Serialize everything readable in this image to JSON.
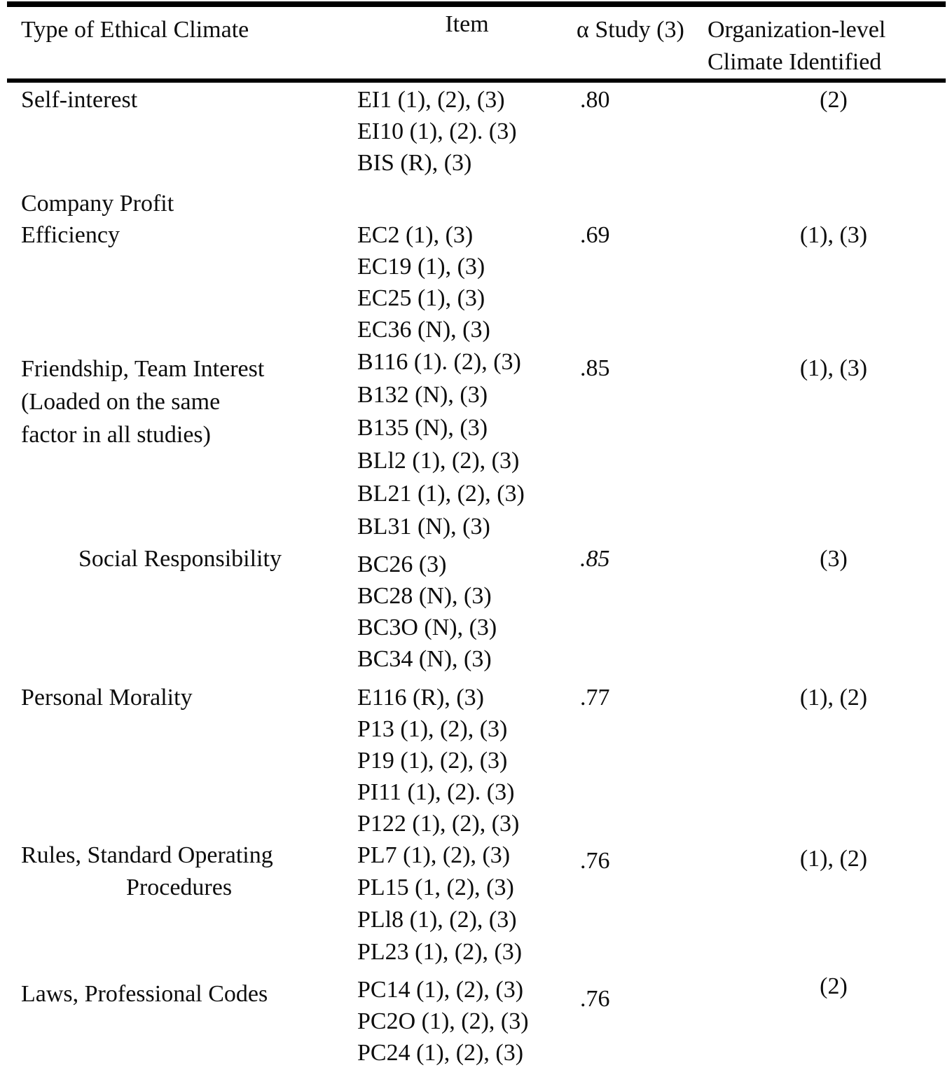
{
  "table": {
    "headers": {
      "col1": "Type of Ethical Climate",
      "col2": "Item",
      "col3": "α Study (3)",
      "col4_line1": "Organization-level",
      "col4_line2": "Climate Identified"
    },
    "sections": [
      {
        "label_lines": [
          "Self-interest"
        ],
        "items": [
          "EI1 (1), (2), (3)",
          "EI10 (1), (2). (3)",
          "BIS (R), (3)"
        ],
        "alpha": ".80",
        "identified": "(2)"
      },
      {
        "label_lines": [
          "Company Profit"
        ],
        "items": [],
        "alpha": "",
        "identified": ""
      },
      {
        "label_lines": [
          "Efficiency"
        ],
        "items": [
          "EC2 (1), (3)",
          "EC19 (1), (3)",
          "EC25 (1), (3)",
          "EC36 (N), (3)"
        ],
        "alpha": ".69",
        "identified": "(1), (3)"
      },
      {
        "label_lines": [
          "Friendship, Team Interest",
          "(Loaded on the same",
          "factor in all studies)"
        ],
        "items": [
          "B116 (1). (2), (3)",
          "B132 (N), (3)",
          "B135 (N), (3)",
          "BLl2 (1), (2), (3)",
          "BL21 (1), (2), (3)",
          "BL31 (N), (3)"
        ],
        "alpha": ".85",
        "identified": "(1), (3)"
      },
      {
        "label_lines": [
          "Social Responsibility"
        ],
        "items": [
          "BC26 (3)",
          "BC28 (N), (3)",
          "BC3O (N), (3)",
          "BC34 (N), (3)"
        ],
        "alpha": ".85",
        "identified": "(3)"
      },
      {
        "label_lines": [
          "Personal Morality"
        ],
        "items": [
          "E116 (R), (3)",
          "P13 (1), (2), (3)",
          "P19 (1), (2), (3)",
          "PI11 (1), (2). (3)",
          "P122 (1), (2), (3)"
        ],
        "alpha": ".77",
        "identified": "(1), (2)"
      },
      {
        "label_lines": [
          "Rules, Standard Operating",
          "Procedures"
        ],
        "items": [
          "PL7 (1), (2), (3)",
          "PL15 (1, (2), (3)",
          "PLl8 (1), (2), (3)",
          "PL23 (1), (2), (3)"
        ],
        "alpha": ".76",
        "identified": "(1), (2)"
      },
      {
        "label_lines": [
          "Laws, Professional Codes"
        ],
        "items": [
          "PC14 (1), (2), (3)",
          "PC2O (1), (2), (3)",
          "PC24 (1), (2), (3)"
        ],
        "alpha": ".76",
        "identified": "(2)"
      }
    ]
  }
}
